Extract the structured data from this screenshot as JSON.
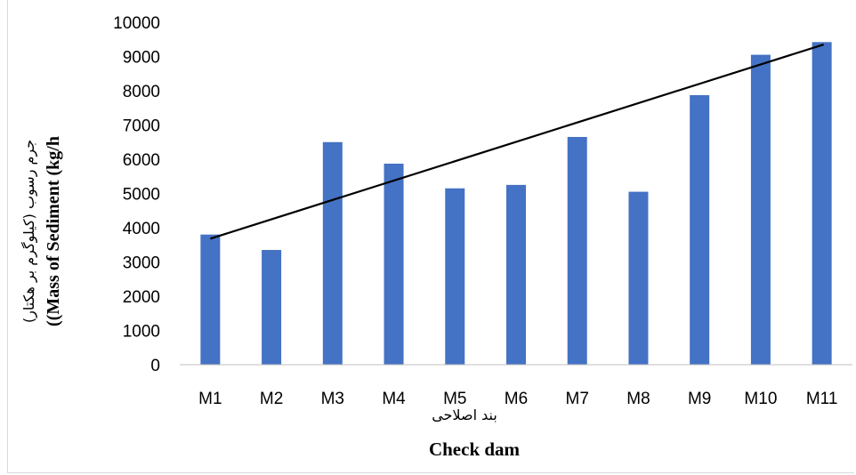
{
  "chart_data": {
    "type": "bar",
    "categories": [
      "M1",
      "M2",
      "M3",
      "M4",
      "M5",
      "M6",
      "M7",
      "M8",
      "M9",
      "M10",
      "M11"
    ],
    "values": [
      3800,
      3350,
      6500,
      5870,
      5150,
      5250,
      6650,
      5050,
      7870,
      9050,
      9420
    ],
    "ylim": [
      0,
      10000
    ],
    "yticks": [
      0,
      1000,
      2000,
      3000,
      4000,
      5000,
      6000,
      7000,
      8000,
      9000,
      10000
    ],
    "ylabel_fa": "جرم رسوب (کیلوگرم بر هکتار)",
    "ylabel_en": "((Mass of Sediment  (kg/h",
    "xlabel_fa": "بند اصلاحی",
    "xlabel_en": "Check dam",
    "trendline": {
      "type": "linear",
      "start": [
        1,
        3680
      ],
      "end": [
        11,
        9350
      ]
    },
    "bar_color": "#4472c4",
    "trend_color": "#000000",
    "grid": false,
    "legend": "none"
  }
}
